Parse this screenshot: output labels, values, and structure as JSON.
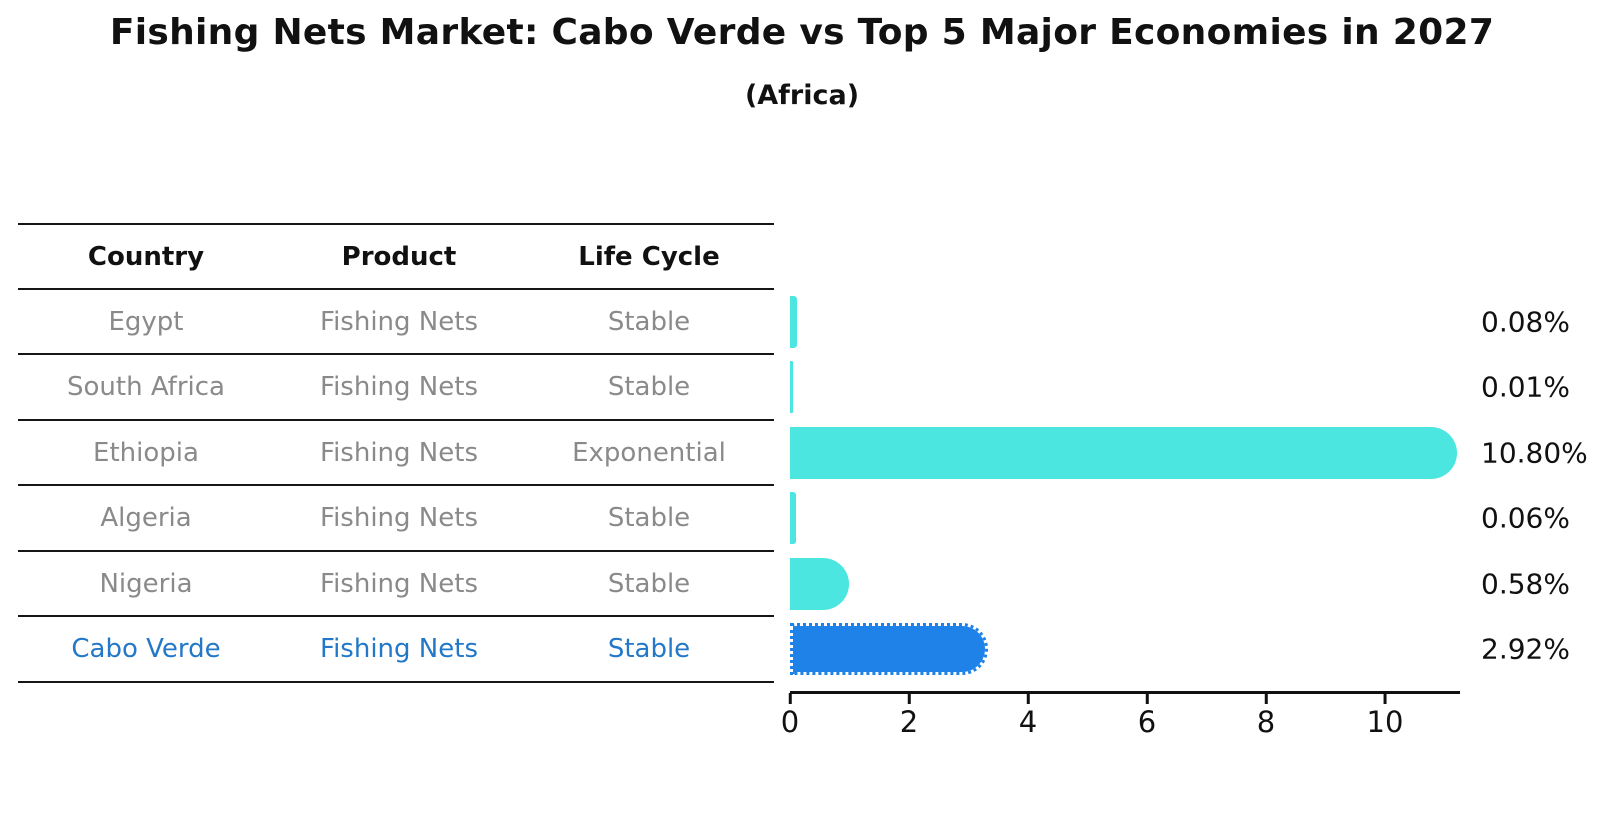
{
  "chart_data": {
    "type": "bar",
    "orientation": "horizontal",
    "title": "Fishing Nets Market: Cabo Verde vs Top 5 Major Economies in 2027",
    "subtitle": "(Africa)",
    "categories": [
      "Egypt",
      "South Africa",
      "Ethiopia",
      "Algeria",
      "Nigeria",
      "Cabo Verde"
    ],
    "values": [
      0.08,
      0.01,
      10.8,
      0.06,
      0.58,
      2.92
    ],
    "value_labels": [
      "0.08%",
      "0.01%",
      "10.80%",
      "0.06%",
      "0.58%",
      "2.92%"
    ],
    "x_ticks": [
      0,
      2,
      4,
      6,
      8,
      10
    ],
    "xlim": [
      0,
      11.2
    ],
    "grid": false,
    "legend": "none",
    "bar_colors": [
      "#4AE6DF",
      "#4AE6DF",
      "#4AE6DF",
      "#4AE6DF",
      "#4AE6DF",
      "#1E82E8"
    ],
    "highlight_index": 5
  },
  "table": {
    "headers": {
      "country": "Country",
      "product": "Product",
      "life_cycle": "Life Cycle"
    },
    "rows": [
      {
        "country": "Egypt",
        "product": "Fishing Nets",
        "life_cycle": "Stable",
        "highlighted": false
      },
      {
        "country": "South Africa",
        "product": "Fishing Nets",
        "life_cycle": "Stable",
        "highlighted": false
      },
      {
        "country": "Ethiopia",
        "product": "Fishing Nets",
        "life_cycle": "Exponential",
        "highlighted": false
      },
      {
        "country": "Algeria",
        "product": "Fishing Nets",
        "life_cycle": "Stable",
        "highlighted": false
      },
      {
        "country": "Nigeria",
        "product": "Fishing Nets",
        "life_cycle": "Stable",
        "highlighted": false
      },
      {
        "country": "Cabo Verde",
        "product": "Fishing Nets",
        "life_cycle": "Stable",
        "highlighted": true
      }
    ]
  },
  "colors": {
    "bar_default": "#4AE6DF",
    "bar_highlight": "#1E82E8",
    "row_text": "#8A8A8A",
    "highlight_text": "#2478C8",
    "header_text": "#111111",
    "axis": "#111111"
  }
}
